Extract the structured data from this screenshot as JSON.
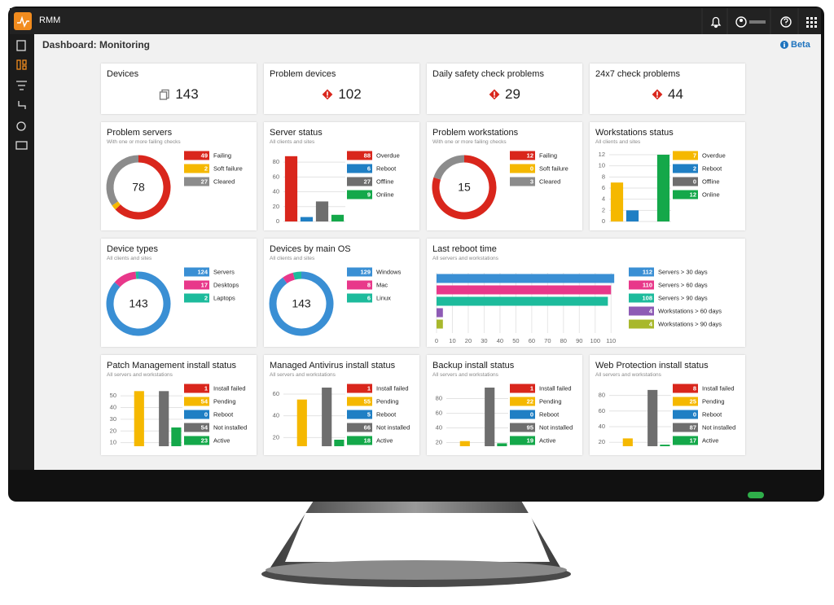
{
  "header": {
    "app": "RMM",
    "page_title": "Dashboard: Monitoring",
    "beta": "Beta"
  },
  "widgets": [
    {
      "type": "kpi",
      "title": "Devices",
      "value": 143,
      "alert": false
    },
    {
      "type": "kpi",
      "title": "Problem devices",
      "value": 102,
      "alert": true
    },
    {
      "type": "kpi",
      "title": "Daily safety check problems",
      "value": 29,
      "alert": true
    },
    {
      "type": "kpi",
      "title": "24x7 check problems",
      "value": 44,
      "alert": true
    },
    {
      "type": "donut",
      "title": "Problem servers",
      "subtitle": "With one or more failing checks",
      "total": 78,
      "series": [
        {
          "name": "Failing",
          "color": "#d9261c",
          "value": 49
        },
        {
          "name": "Soft failure",
          "color": "#f5b800",
          "value": 2
        },
        {
          "name": "Cleared",
          "color": "#8c8c8c",
          "value": 27
        }
      ]
    },
    {
      "type": "bar",
      "title": "Server status",
      "subtitle": "All clients and sites",
      "ylim": [
        0,
        90
      ],
      "yticks": [
        0,
        20,
        40,
        60,
        80
      ],
      "series": [
        {
          "name": "Overdue",
          "color": "#d9261c",
          "value": 88
        },
        {
          "name": "Reboot",
          "color": "#1f7fc4",
          "value": 6
        },
        {
          "name": "Offline",
          "color": "#6e6e6e",
          "value": 27
        },
        {
          "name": "Online",
          "color": "#14a84a",
          "value": 9
        }
      ]
    },
    {
      "type": "donut",
      "title": "Problem workstations",
      "subtitle": "With one or more failing checks",
      "total": 15,
      "series": [
        {
          "name": "Failing",
          "color": "#d9261c",
          "value": 12
        },
        {
          "name": "Soft failure",
          "color": "#f5b800",
          "value": 0
        },
        {
          "name": "Cleared",
          "color": "#8c8c8c",
          "value": 3
        }
      ]
    },
    {
      "type": "bar",
      "title": "Workstations status",
      "subtitle": "All clients and sites",
      "ylim": [
        0,
        12
      ],
      "yticks": [
        0,
        2,
        4,
        6,
        8,
        10,
        12
      ],
      "series": [
        {
          "name": "Overdue",
          "color": "#f5b800",
          "value": 7
        },
        {
          "name": "Reboot",
          "color": "#1f7fc4",
          "value": 2
        },
        {
          "name": "Offline",
          "color": "#6e6e6e",
          "value": 0
        },
        {
          "name": "Online",
          "color": "#14a84a",
          "value": 12
        }
      ]
    },
    {
      "type": "donut",
      "title": "Device types",
      "subtitle": "All clients and sites",
      "total": 143,
      "series": [
        {
          "name": "Servers",
          "color": "#3a8fd4",
          "value": 124
        },
        {
          "name": "Desktops",
          "color": "#e8388a",
          "value": 17
        },
        {
          "name": "Laptops",
          "color": "#1dbb9c",
          "value": 2
        }
      ]
    },
    {
      "type": "donut",
      "title": "Devices by main OS",
      "subtitle": "All clients and sites",
      "total": 143,
      "series": [
        {
          "name": "Windows",
          "color": "#3a8fd4",
          "value": 129
        },
        {
          "name": "Mac",
          "color": "#e8388a",
          "value": 8
        },
        {
          "name": "Linux",
          "color": "#1dbb9c",
          "value": 6
        }
      ]
    },
    {
      "type": "hbar",
      "title": "Last reboot time",
      "subtitle": "All servers and workstations",
      "xlim": [
        0,
        115
      ],
      "xticks": [
        0,
        10,
        20,
        30,
        40,
        50,
        60,
        70,
        80,
        90,
        100,
        110
      ],
      "series": [
        {
          "name": "Servers > 30 days",
          "color": "#3a8fd4",
          "value": 112
        },
        {
          "name": "Servers > 60 days",
          "color": "#e8388a",
          "value": 110
        },
        {
          "name": "Servers > 90 days",
          "color": "#1dbb9c",
          "value": 108
        },
        {
          "name": "Workstations > 60 days",
          "color": "#8e5bb5",
          "value": 4
        },
        {
          "name": "Workstations > 90 days",
          "color": "#a8b82c",
          "value": 4
        }
      ]
    },
    {
      "type": "bar",
      "title": "Patch Management install status",
      "subtitle": "All servers and workstations",
      "ylim": [
        7,
        57
      ],
      "yticks": [
        10,
        20,
        30,
        40,
        50
      ],
      "series": [
        {
          "name": "Install failed",
          "color": "#d9261c",
          "value": 1
        },
        {
          "name": "Pending",
          "color": "#f5b800",
          "value": 54
        },
        {
          "name": "Reboot",
          "color": "#1f7fc4",
          "value": 0
        },
        {
          "name": "Not installed",
          "color": "#6e6e6e",
          "value": 54
        },
        {
          "name": "Active",
          "color": "#14a84a",
          "value": 23
        }
      ]
    },
    {
      "type": "bar",
      "title": "Managed Antivirus install status",
      "subtitle": "All servers and workstations",
      "ylim": [
        12,
        66
      ],
      "yticks": [
        20,
        40,
        60
      ],
      "series": [
        {
          "name": "Install failed",
          "color": "#d9261c",
          "value": 1
        },
        {
          "name": "Pending",
          "color": "#f5b800",
          "value": 55
        },
        {
          "name": "Reboot",
          "color": "#1f7fc4",
          "value": 5
        },
        {
          "name": "Not installed",
          "color": "#6e6e6e",
          "value": 66
        },
        {
          "name": "Active",
          "color": "#14a84a",
          "value": 18
        }
      ]
    },
    {
      "type": "bar",
      "title": "Backup install status",
      "subtitle": "All servers and workstations",
      "ylim": [
        15,
        95
      ],
      "yticks": [
        20,
        40,
        60,
        80
      ],
      "series": [
        {
          "name": "Install failed",
          "color": "#d9261c",
          "value": 1
        },
        {
          "name": "Pending",
          "color": "#f5b800",
          "value": 22
        },
        {
          "name": "Reboot",
          "color": "#1f7fc4",
          "value": 0
        },
        {
          "name": "Not installed",
          "color": "#6e6e6e",
          "value": 95
        },
        {
          "name": "Active",
          "color": "#14a84a",
          "value": 19
        }
      ]
    },
    {
      "type": "bar",
      "title": "Web Protection install status",
      "subtitle": "All servers and workstations",
      "ylim": [
        15,
        90
      ],
      "yticks": [
        20,
        40,
        60,
        80
      ],
      "series": [
        {
          "name": "Install failed",
          "color": "#d9261c",
          "value": 8
        },
        {
          "name": "Pending",
          "color": "#f5b800",
          "value": 25
        },
        {
          "name": "Reboot",
          "color": "#1f7fc4",
          "value": 0
        },
        {
          "name": "Not installed",
          "color": "#6e6e6e",
          "value": 87
        },
        {
          "name": "Active",
          "color": "#14a84a",
          "value": 17
        }
      ]
    }
  ]
}
